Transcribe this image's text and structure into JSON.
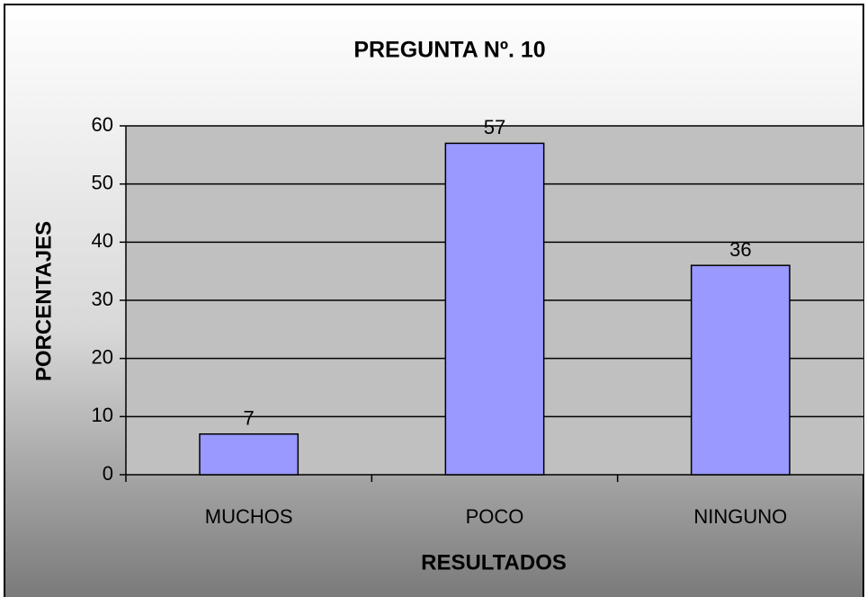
{
  "chart_data": {
    "type": "bar",
    "title": "PREGUNTA Nº. 10",
    "x_label": "RESULTADOS",
    "y_label": "PORCENTAJES",
    "categories": [
      "MUCHOS",
      "POCO",
      "NINGUNO"
    ],
    "values": [
      7,
      57,
      36
    ],
    "color": "#9999ff",
    "ylim": [
      0,
      60
    ],
    "yticks": [
      0,
      10,
      20,
      30,
      40,
      50,
      60
    ],
    "grid": true
  }
}
